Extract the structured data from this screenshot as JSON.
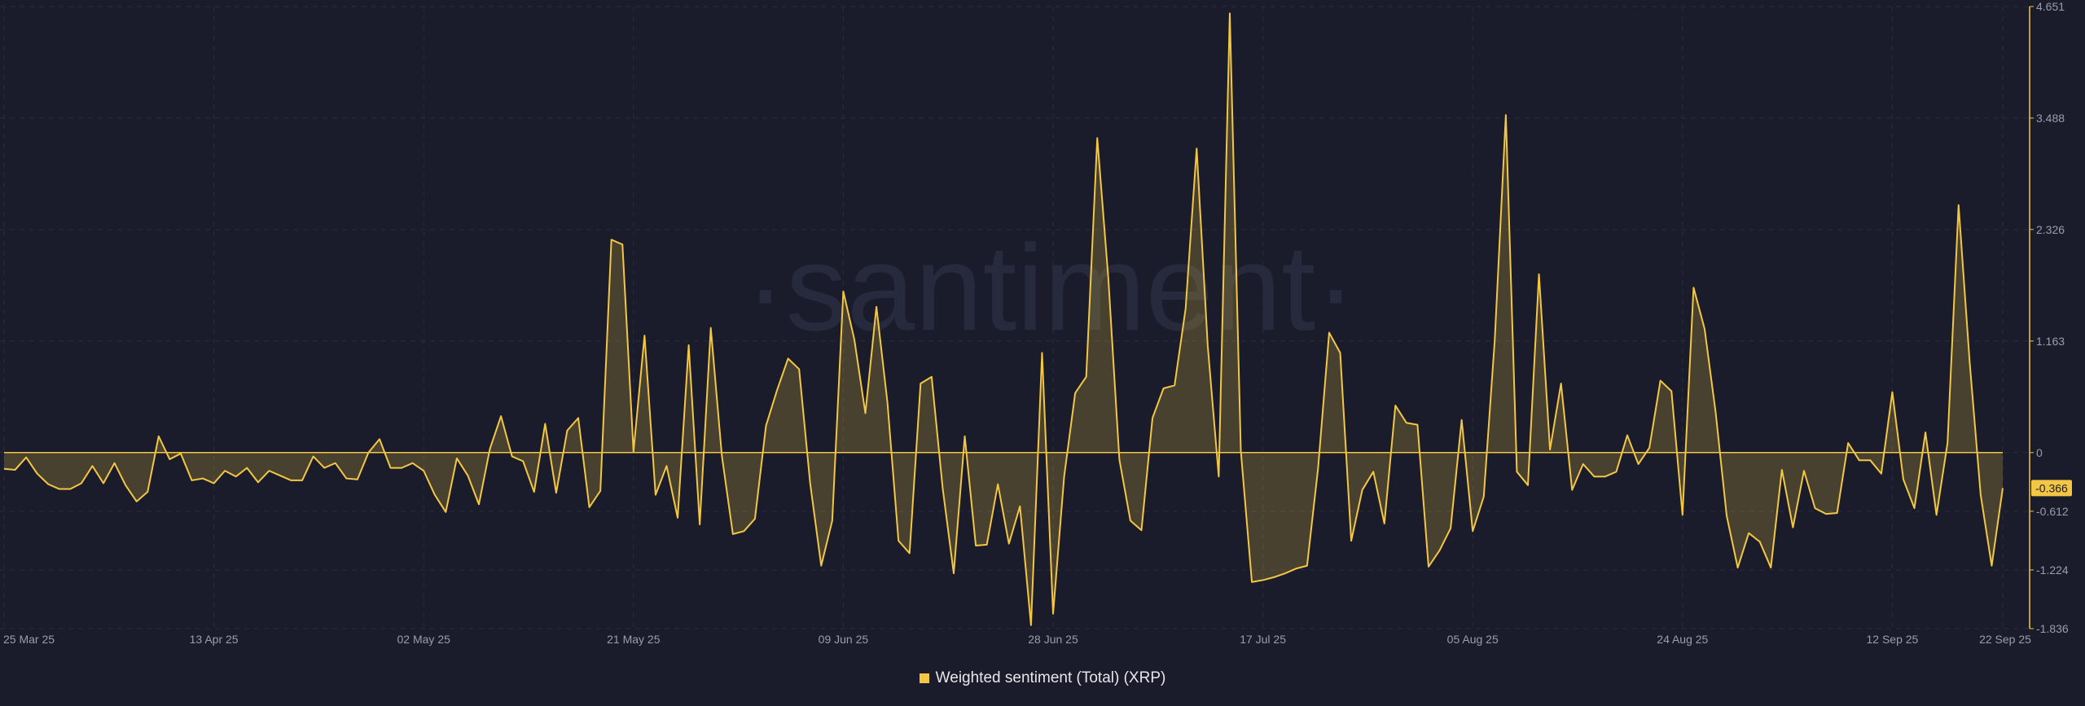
{
  "watermark": "·santiment·",
  "colors": {
    "background": "#1a1c2b",
    "line": "#f3c744",
    "grid": "#2a2d3d",
    "axis_text": "#9a9dab",
    "current_badge_bg": "#f3c744",
    "current_badge_text": "#1a1c2b"
  },
  "legend": {
    "label": "Weighted sentiment (Total) (XRP)",
    "color": "#f3c744"
  },
  "current_value_label": "-0.366",
  "chart_data": {
    "type": "area",
    "title": "",
    "xlabel": "",
    "ylabel": "",
    "ylim": [
      -1.836,
      4.651
    ],
    "y_ticks": [
      {
        "value": 4.651,
        "label": "4.651"
      },
      {
        "value": 3.488,
        "label": "3.488"
      },
      {
        "value": 2.326,
        "label": "2.326"
      },
      {
        "value": 1.163,
        "label": "1.163"
      },
      {
        "value": 0,
        "label": "0"
      },
      {
        "value": -0.612,
        "label": "-0.612"
      },
      {
        "value": -1.224,
        "label": "-1.224"
      },
      {
        "value": -1.836,
        "label": "-1.836"
      }
    ],
    "x_start": "2025-03-25",
    "x_end": "2025-09-22",
    "x_ticks": [
      {
        "date": "2025-03-25",
        "label": "25 Mar 25"
      },
      {
        "date": "2025-04-13",
        "label": "13 Apr 25"
      },
      {
        "date": "2025-05-02",
        "label": "02 May 25"
      },
      {
        "date": "2025-05-21",
        "label": "21 May 25"
      },
      {
        "date": "2025-06-09",
        "label": "09 Jun 25"
      },
      {
        "date": "2025-06-28",
        "label": "28 Jun 25"
      },
      {
        "date": "2025-07-17",
        "label": "17 Jul 25"
      },
      {
        "date": "2025-08-05",
        "label": "05 Aug 25"
      },
      {
        "date": "2025-08-24",
        "label": "24 Aug 25"
      },
      {
        "date": "2025-09-12",
        "label": "12 Sep 25"
      },
      {
        "date": "2025-09-22",
        "label": "22 Sep 25"
      }
    ],
    "series": [
      {
        "name": "Weighted sentiment (Total) (XRP)",
        "color": "#f3c744",
        "points": [
          [
            "2025-03-25",
            -0.17
          ],
          [
            "2025-03-26",
            -0.18
          ],
          [
            "2025-03-27",
            -0.05
          ],
          [
            "2025-03-28",
            -0.22
          ],
          [
            "2025-03-29",
            -0.33
          ],
          [
            "2025-03-30",
            -0.38
          ],
          [
            "2025-03-31",
            -0.38
          ],
          [
            "2025-04-01",
            -0.32
          ],
          [
            "2025-04-02",
            -0.14
          ],
          [
            "2025-04-03",
            -0.32
          ],
          [
            "2025-04-04",
            -0.11
          ],
          [
            "2025-04-05",
            -0.34
          ],
          [
            "2025-04-06",
            -0.51
          ],
          [
            "2025-04-07",
            -0.41
          ],
          [
            "2025-04-08",
            0.17
          ],
          [
            "2025-04-09",
            -0.07
          ],
          [
            "2025-04-10",
            -0.01
          ],
          [
            "2025-04-11",
            -0.29
          ],
          [
            "2025-04-12",
            -0.27
          ],
          [
            "2025-04-13",
            -0.32
          ],
          [
            "2025-04-14",
            -0.19
          ],
          [
            "2025-04-15",
            -0.25
          ],
          [
            "2025-04-16",
            -0.16
          ],
          [
            "2025-04-17",
            -0.31
          ],
          [
            "2025-04-18",
            -0.19
          ],
          [
            "2025-04-19",
            -0.24
          ],
          [
            "2025-04-20",
            -0.29
          ],
          [
            "2025-04-21",
            -0.29
          ],
          [
            "2025-04-22",
            -0.04
          ],
          [
            "2025-04-23",
            -0.16
          ],
          [
            "2025-04-24",
            -0.11
          ],
          [
            "2025-04-25",
            -0.27
          ],
          [
            "2025-04-26",
            -0.28
          ],
          [
            "2025-04-27",
            0.0
          ],
          [
            "2025-04-28",
            0.14
          ],
          [
            "2025-04-29",
            -0.16
          ],
          [
            "2025-04-30",
            -0.16
          ],
          [
            "2025-05-01",
            -0.11
          ],
          [
            "2025-05-02",
            -0.19
          ],
          [
            "2025-05-03",
            -0.44
          ],
          [
            "2025-05-04",
            -0.62
          ],
          [
            "2025-05-05",
            -0.06
          ],
          [
            "2025-05-06",
            -0.24
          ],
          [
            "2025-05-07",
            -0.54
          ],
          [
            "2025-05-08",
            0.04
          ],
          [
            "2025-05-09",
            0.38
          ],
          [
            "2025-05-10",
            -0.04
          ],
          [
            "2025-05-11",
            -0.09
          ],
          [
            "2025-05-12",
            -0.41
          ],
          [
            "2025-05-13",
            0.3
          ],
          [
            "2025-05-14",
            -0.42
          ],
          [
            "2025-05-15",
            0.23
          ],
          [
            "2025-05-16",
            0.36
          ],
          [
            "2025-05-17",
            -0.57
          ],
          [
            "2025-05-18",
            -0.4
          ],
          [
            "2025-05-19",
            2.22
          ],
          [
            "2025-05-20",
            2.17
          ],
          [
            "2025-05-21",
            0.01
          ],
          [
            "2025-05-22",
            1.22
          ],
          [
            "2025-05-23",
            -0.44
          ],
          [
            "2025-05-24",
            -0.14
          ],
          [
            "2025-05-25",
            -0.68
          ],
          [
            "2025-05-26",
            1.12
          ],
          [
            "2025-05-27",
            -0.75
          ],
          [
            "2025-05-28",
            1.3
          ],
          [
            "2025-05-29",
            -0.03
          ],
          [
            "2025-05-30",
            -0.85
          ],
          [
            "2025-05-31",
            -0.82
          ],
          [
            "2025-06-01",
            -0.69
          ],
          [
            "2025-06-02",
            0.28
          ],
          [
            "2025-06-03",
            0.65
          ],
          [
            "2025-06-04",
            0.98
          ],
          [
            "2025-06-05",
            0.87
          ],
          [
            "2025-06-06",
            -0.32
          ],
          [
            "2025-06-07",
            -1.18
          ],
          [
            "2025-06-08",
            -0.71
          ],
          [
            "2025-06-09",
            1.68
          ],
          [
            "2025-06-10",
            1.18
          ],
          [
            "2025-06-11",
            0.41
          ],
          [
            "2025-06-12",
            1.52
          ],
          [
            "2025-06-13",
            0.52
          ],
          [
            "2025-06-14",
            -0.92
          ],
          [
            "2025-06-15",
            -1.05
          ],
          [
            "2025-06-16",
            0.72
          ],
          [
            "2025-06-17",
            0.79
          ],
          [
            "2025-06-18",
            -0.37
          ],
          [
            "2025-06-19",
            -1.26
          ],
          [
            "2025-06-20",
            0.17
          ],
          [
            "2025-06-21",
            -0.97
          ],
          [
            "2025-06-22",
            -0.96
          ],
          [
            "2025-06-23",
            -0.33
          ],
          [
            "2025-06-24",
            -0.95
          ],
          [
            "2025-06-25",
            -0.56
          ],
          [
            "2025-06-26",
            -1.8
          ],
          [
            "2025-06-27",
            1.04
          ],
          [
            "2025-06-28",
            -1.68
          ],
          [
            "2025-06-29",
            -0.25
          ],
          [
            "2025-06-30",
            0.62
          ],
          [
            "2025-07-01",
            0.79
          ],
          [
            "2025-07-02",
            3.28
          ],
          [
            "2025-07-03",
            1.82
          ],
          [
            "2025-07-04",
            -0.07
          ],
          [
            "2025-07-05",
            -0.71
          ],
          [
            "2025-07-06",
            -0.81
          ],
          [
            "2025-07-07",
            0.36
          ],
          [
            "2025-07-08",
            0.67
          ],
          [
            "2025-07-09",
            0.7
          ],
          [
            "2025-07-10",
            1.5
          ],
          [
            "2025-07-11",
            3.17
          ],
          [
            "2025-07-12",
            1.12
          ],
          [
            "2025-07-13",
            -0.25
          ],
          [
            "2025-07-14",
            4.58
          ],
          [
            "2025-07-15",
            0.02
          ],
          [
            "2025-07-16",
            -1.35
          ],
          [
            "2025-07-17",
            -1.33
          ],
          [
            "2025-07-18",
            -1.3
          ],
          [
            "2025-07-19",
            -1.26
          ],
          [
            "2025-07-20",
            -1.21
          ],
          [
            "2025-07-21",
            -1.18
          ],
          [
            "2025-07-22",
            -0.16
          ],
          [
            "2025-07-23",
            1.25
          ],
          [
            "2025-07-24",
            1.04
          ],
          [
            "2025-07-25",
            -0.92
          ],
          [
            "2025-07-26",
            -0.39
          ],
          [
            "2025-07-27",
            -0.2
          ],
          [
            "2025-07-28",
            -0.74
          ],
          [
            "2025-07-29",
            0.49
          ],
          [
            "2025-07-30",
            0.31
          ],
          [
            "2025-07-31",
            0.29
          ],
          [
            "2025-08-01",
            -1.19
          ],
          [
            "2025-08-02",
            -1.02
          ],
          [
            "2025-08-03",
            -0.79
          ],
          [
            "2025-08-04",
            0.34
          ],
          [
            "2025-08-05",
            -0.82
          ],
          [
            "2025-08-06",
            -0.46
          ],
          [
            "2025-08-07",
            1.18
          ],
          [
            "2025-08-08",
            3.52
          ],
          [
            "2025-08-09",
            -0.2
          ],
          [
            "2025-08-10",
            -0.34
          ],
          [
            "2025-08-11",
            1.86
          ],
          [
            "2025-08-12",
            0.03
          ],
          [
            "2025-08-13",
            0.72
          ],
          [
            "2025-08-14",
            -0.39
          ],
          [
            "2025-08-15",
            -0.12
          ],
          [
            "2025-08-16",
            -0.25
          ],
          [
            "2025-08-17",
            -0.25
          ],
          [
            "2025-08-18",
            -0.2
          ],
          [
            "2025-08-19",
            0.18
          ],
          [
            "2025-08-20",
            -0.12
          ],
          [
            "2025-08-21",
            0.05
          ],
          [
            "2025-08-22",
            0.75
          ],
          [
            "2025-08-23",
            0.64
          ],
          [
            "2025-08-24",
            -0.65
          ],
          [
            "2025-08-25",
            1.72
          ],
          [
            "2025-08-26",
            1.29
          ],
          [
            "2025-08-27",
            0.42
          ],
          [
            "2025-08-28",
            -0.66
          ],
          [
            "2025-08-29",
            -1.2
          ],
          [
            "2025-08-30",
            -0.84
          ],
          [
            "2025-08-31",
            -0.93
          ],
          [
            "2025-09-01",
            -1.2
          ],
          [
            "2025-09-02",
            -0.18
          ],
          [
            "2025-09-03",
            -0.78
          ],
          [
            "2025-09-04",
            -0.19
          ],
          [
            "2025-09-05",
            -0.58
          ],
          [
            "2025-09-06",
            -0.64
          ],
          [
            "2025-09-07",
            -0.63
          ],
          [
            "2025-09-08",
            0.1
          ],
          [
            "2025-09-09",
            -0.08
          ],
          [
            "2025-09-10",
            -0.08
          ],
          [
            "2025-09-11",
            -0.22
          ],
          [
            "2025-09-12",
            0.63
          ],
          [
            "2025-09-13",
            -0.28
          ],
          [
            "2025-09-14",
            -0.58
          ],
          [
            "2025-09-15",
            0.21
          ],
          [
            "2025-09-16",
            -0.65
          ],
          [
            "2025-09-17",
            0.1
          ],
          [
            "2025-09-18",
            2.58
          ],
          [
            "2025-09-19",
            0.95
          ],
          [
            "2025-09-20",
            -0.44
          ],
          [
            "2025-09-21",
            -1.18
          ],
          [
            "2025-09-22",
            -0.37
          ]
        ]
      }
    ]
  }
}
